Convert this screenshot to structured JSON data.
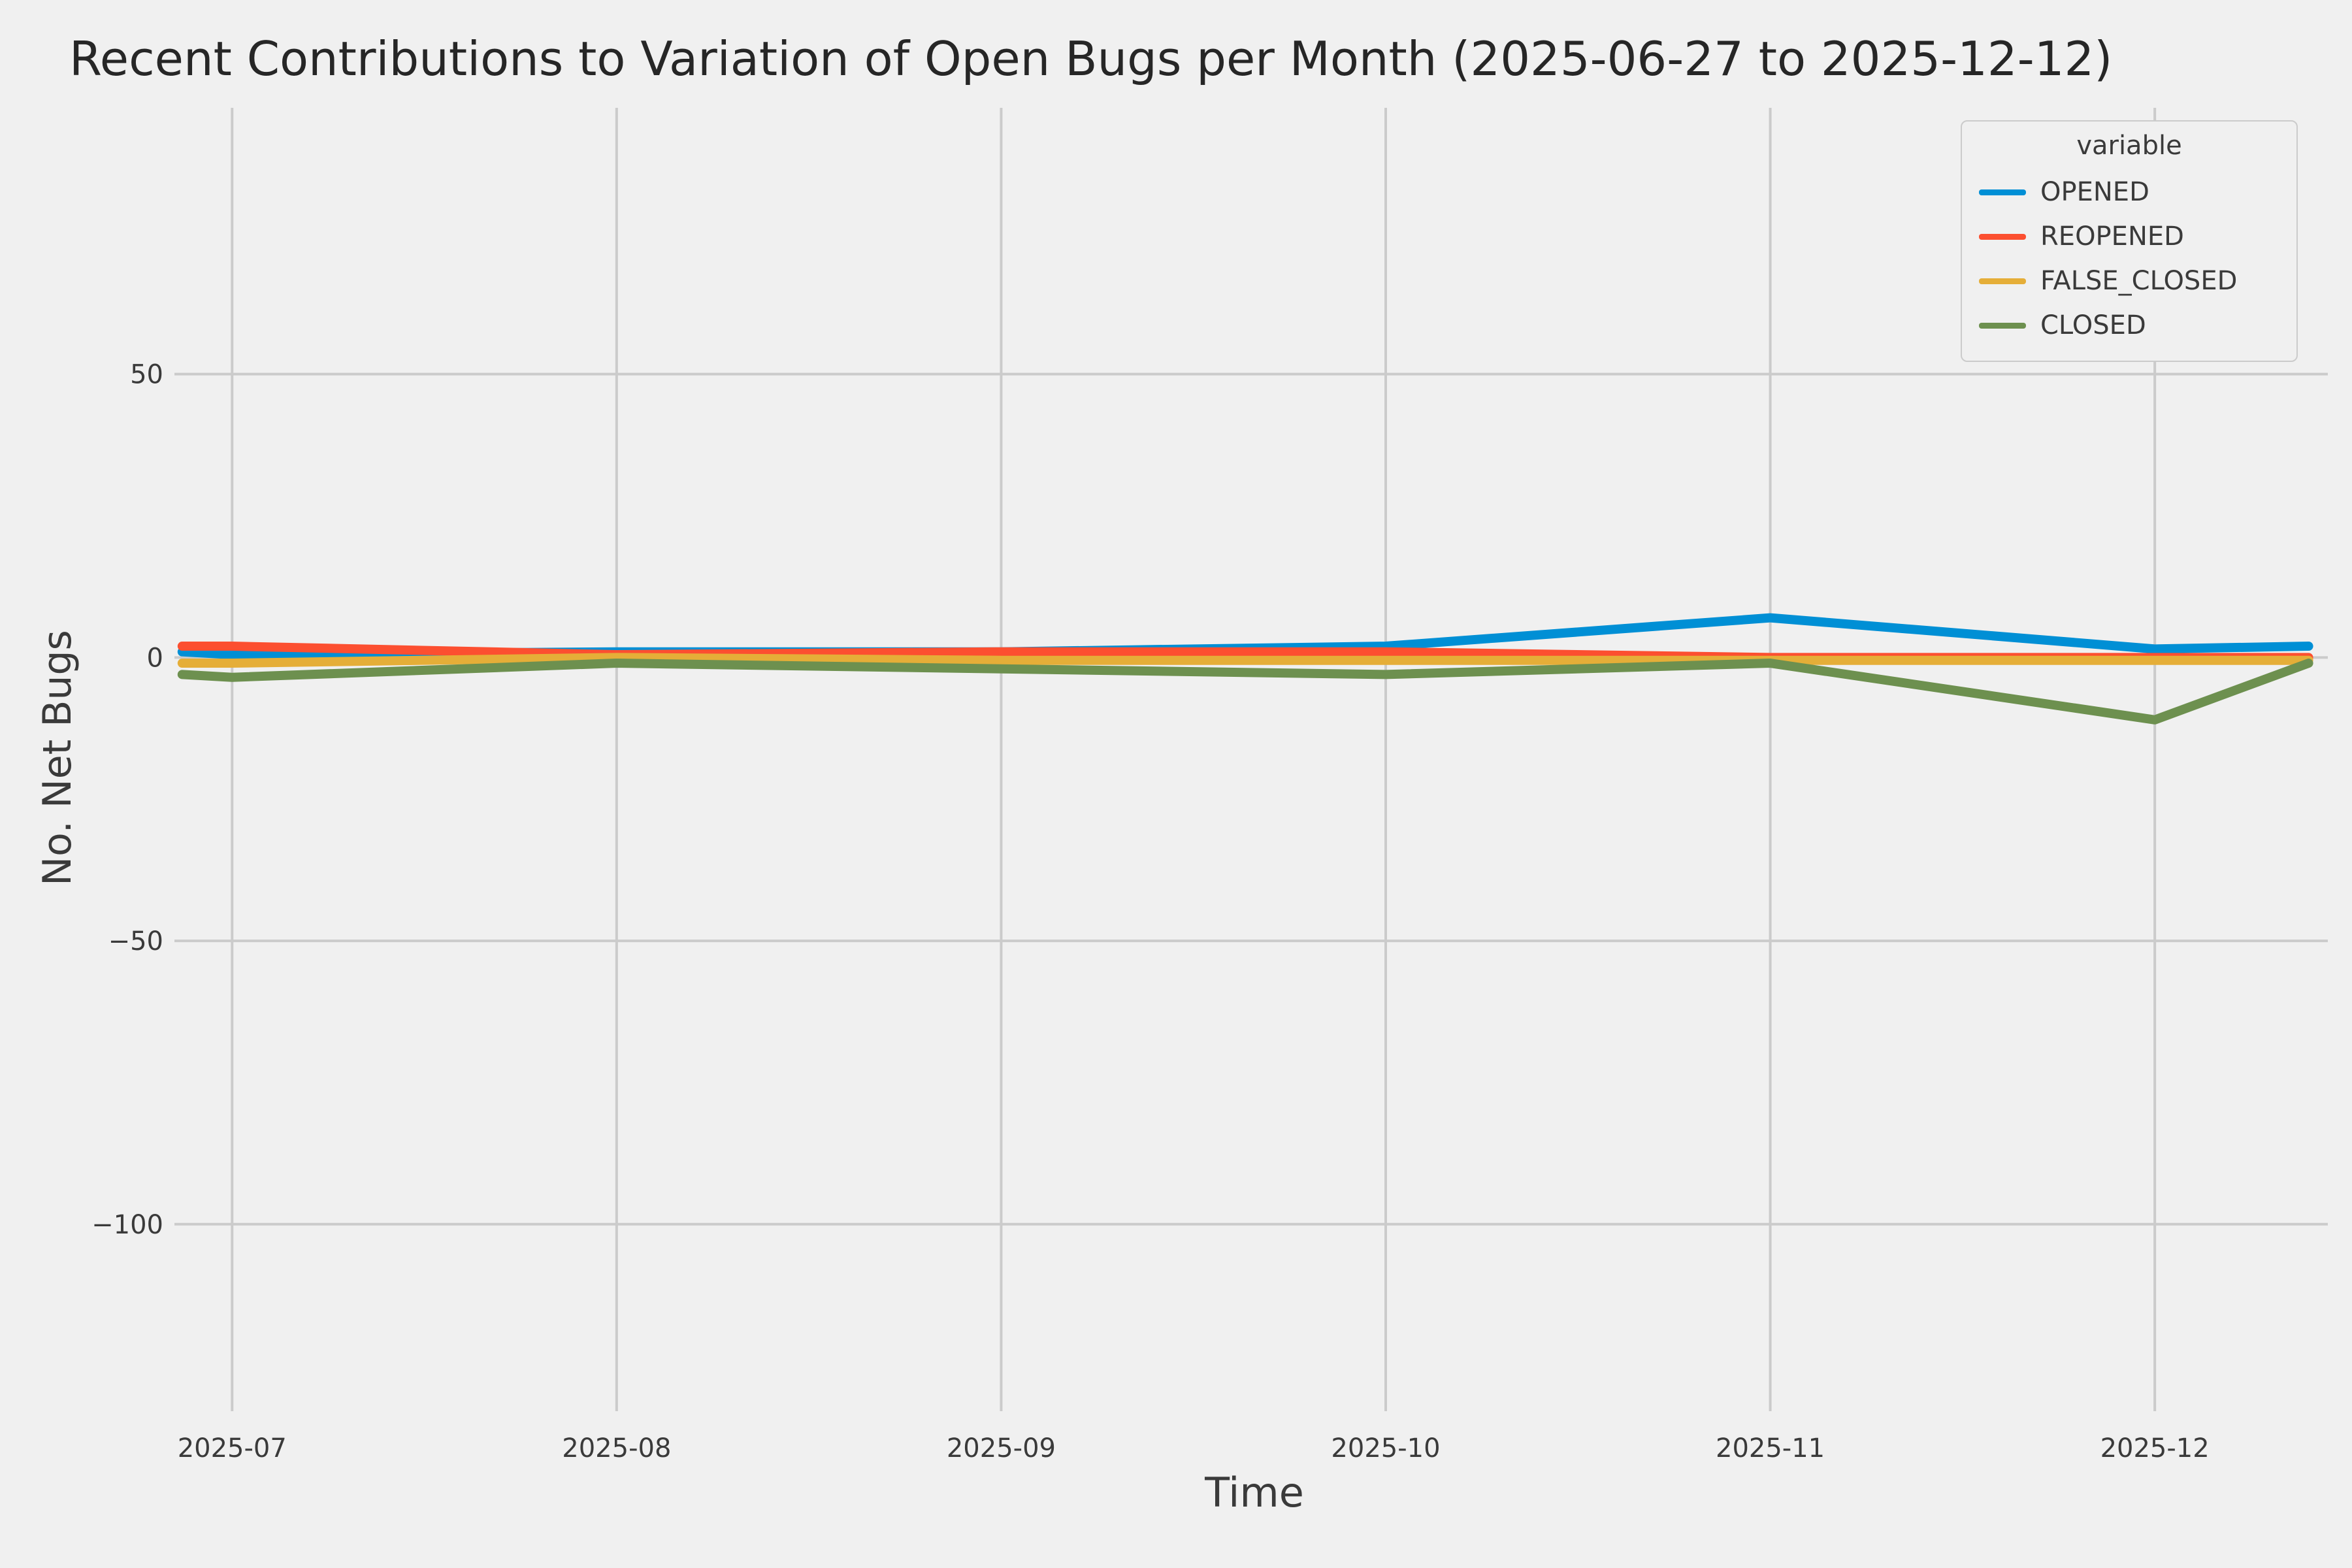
{
  "chart_data": {
    "type": "line",
    "title": "Recent Contributions to Variation of Open Bugs per Month (2025-06-27 to 2025-12-12)",
    "xlabel": "Time",
    "ylabel": "No. Net Bugs",
    "background_color": "#f0f0f0",
    "grid": true,
    "grid_color": "#cbcbcb",
    "x_unit": "month index (July 2025 = 7)",
    "x": [
      6.87,
      7,
      8,
      9,
      10,
      11,
      12,
      12.4
    ],
    "x_dates": [
      "2025-06-27",
      "2025-07-01",
      "2025-08-01",
      "2025-09-01",
      "2025-10-01",
      "2025-11-01",
      "2025-12-01",
      "2025-12-12"
    ],
    "series": [
      {
        "name": "OPENED",
        "color": "#008fd5",
        "values": [
          1,
          0.5,
          1,
          1,
          2,
          7,
          1.5,
          2
        ]
      },
      {
        "name": "REOPENED",
        "color": "#fc4f30",
        "values": [
          2,
          2,
          0.5,
          1,
          1,
          0,
          0,
          0
        ]
      },
      {
        "name": "FALSE_CLOSED",
        "color": "#e5ae38",
        "values": [
          -1,
          -1,
          0,
          -0.5,
          -0.5,
          -0.5,
          -0.5,
          -0.5
        ]
      },
      {
        "name": "CLOSED",
        "color": "#6d904f",
        "values": [
          -3,
          -3.5,
          -1,
          -2,
          -3,
          -1,
          -11,
          -1
        ]
      }
    ],
    "xlim": [
      6.85,
      12.45
    ],
    "ylim": [
      -133,
      97
    ],
    "x_ticks": {
      "positions": [
        7,
        8,
        9,
        10,
        11,
        12
      ],
      "labels": [
        "2025-07",
        "2025-08",
        "2025-09",
        "2025-10",
        "2025-11",
        "2025-12"
      ]
    },
    "y_ticks": {
      "positions": [
        50,
        0,
        -50,
        -100
      ],
      "labels": [
        "50",
        "0",
        "−50",
        "−100"
      ]
    },
    "legend": {
      "title": "variable",
      "position": "upper right",
      "entries": [
        "OPENED",
        "REOPENED",
        "FALSE_CLOSED",
        "CLOSED"
      ]
    }
  }
}
